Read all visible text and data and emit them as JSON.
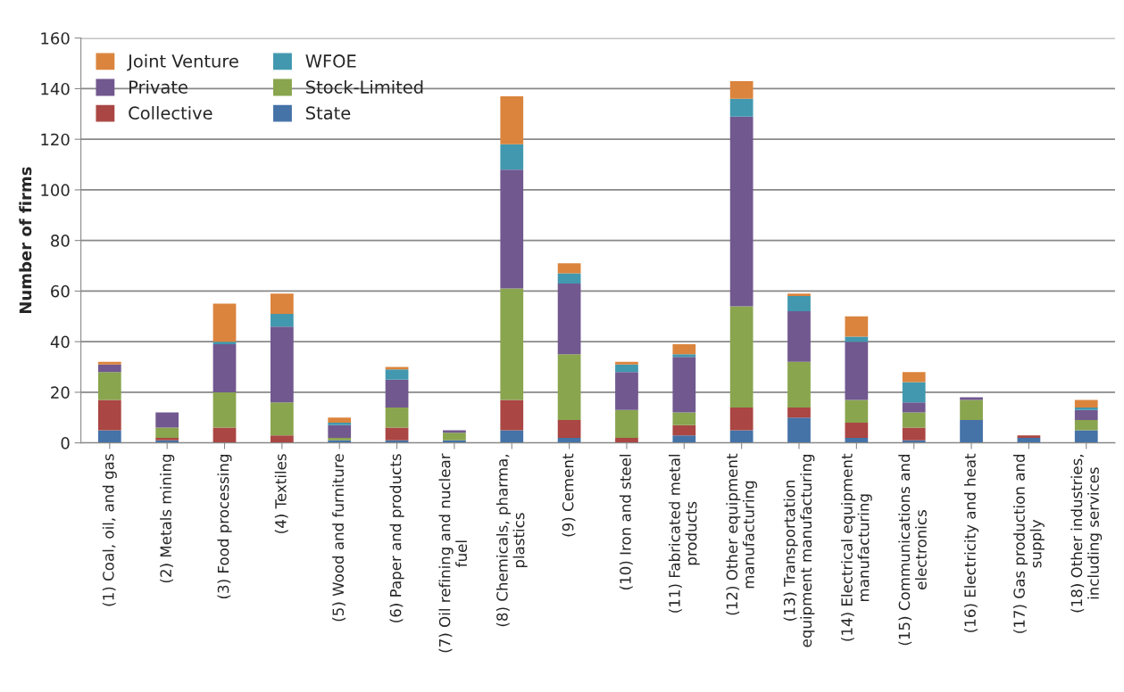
{
  "chart_data": {
    "type": "bar",
    "stacked": true,
    "ylabel": "Number of firms",
    "categories": [
      "(1) Coal, oil, and gas",
      "(2) Metals mining",
      "(3) Food processing",
      "(4) Textiles",
      "(5) Wood and furniture",
      "(6) Paper and products",
      "(7) Oil refining and nuclear\nfuel",
      "(8) Chemicals, pharma,\nplastics",
      "(9) Cement",
      "(10) Iron and steel",
      "(11) Fabricated metal\nproducts",
      "(12) Other equipment\nmanufacturing",
      "(13) Transportation\nequipment manufacturing",
      "(14) Electrical equipment\nmanufacturing",
      "(15) Communications and\nelectronics",
      "(16) Electricity and heat",
      "(17) Gas production and\nsupply",
      "(18) Other industries,\nincluding services"
    ],
    "series": [
      {
        "name": "State",
        "color": "#4572a7",
        "values": [
          5,
          1,
          0,
          0,
          1,
          1,
          1,
          5,
          2,
          0,
          3,
          5,
          10,
          2,
          1,
          9,
          2,
          5
        ]
      },
      {
        "name": "Collective",
        "color": "#aa4643",
        "values": [
          12,
          1,
          6,
          3,
          0,
          5,
          0,
          12,
          7,
          2,
          4,
          9,
          4,
          6,
          5,
          0,
          1,
          0
        ]
      },
      {
        "name": "Stock-Limited",
        "color": "#89a54e",
        "values": [
          11,
          4,
          14,
          13,
          1,
          8,
          3,
          44,
          26,
          11,
          5,
          40,
          18,
          9,
          6,
          8,
          0,
          4
        ]
      },
      {
        "name": "Private",
        "color": "#71588f",
        "values": [
          3,
          6,
          19,
          30,
          5,
          11,
          1,
          47,
          28,
          15,
          22,
          75,
          20,
          23,
          4,
          1,
          0,
          4
        ]
      },
      {
        "name": "WFOE",
        "color": "#4198af",
        "values": [
          0,
          0,
          1,
          5,
          1,
          4,
          0,
          10,
          4,
          3,
          1,
          7,
          6,
          2,
          8,
          0,
          0,
          1
        ]
      },
      {
        "name": "Joint Venture",
        "color": "#db843d",
        "values": [
          1,
          0,
          15,
          8,
          2,
          1,
          0,
          19,
          4,
          1,
          4,
          7,
          1,
          8,
          4,
          0,
          0,
          3
        ]
      }
    ],
    "ylim": [
      0,
      160
    ],
    "yticks": [
      0,
      20,
      40,
      60,
      80,
      100,
      120,
      140,
      160
    ],
    "grid": "y",
    "legend": "top left"
  }
}
